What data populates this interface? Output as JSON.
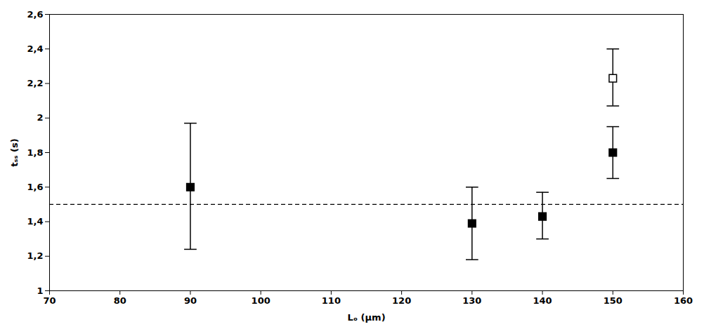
{
  "chart_data": {
    "type": "scatter",
    "xlabel": "Lₒ (μm)",
    "ylabel": "tₛₛ (s)",
    "xlim": [
      70,
      160
    ],
    "ylim": [
      1.0,
      2.6
    ],
    "xticks": [
      70,
      80,
      90,
      100,
      110,
      120,
      130,
      140,
      150,
      160
    ],
    "yticks": [
      1.0,
      {
        "value": 1.2,
        "label": "1,2"
      },
      {
        "value": 1.4,
        "label": "1,4"
      },
      {
        "value": 1.6,
        "label": "1,6"
      },
      {
        "value": 1.8,
        "label": "1,8"
      },
      2.0,
      {
        "value": 2.2,
        "label": "2,2"
      },
      {
        "value": 2.4,
        "label": "2,4"
      },
      {
        "value": 2.6,
        "label": "2,6"
      }
    ],
    "grid": false,
    "series": [
      {
        "x": [
          90,
          130,
          140,
          150
        ],
        "values": [
          1.6,
          1.39,
          1.43,
          1.8
        ],
        "yerr_lower": [
          0.36,
          0.21,
          0.13,
          0.15
        ],
        "yerr_upper": [
          0.37,
          0.21,
          0.14,
          0.15
        ],
        "marker": "square",
        "color": "#000000"
      },
      {
        "x": [
          150
        ],
        "values": [
          2.23
        ],
        "yerr_lower": [
          0.16
        ],
        "yerr_upper": [
          0.17
        ],
        "marker": "open_square",
        "color": "#000000"
      }
    ],
    "hline": {
      "value": 1.5,
      "line_style": "dashed",
      "color": "#000000"
    }
  }
}
